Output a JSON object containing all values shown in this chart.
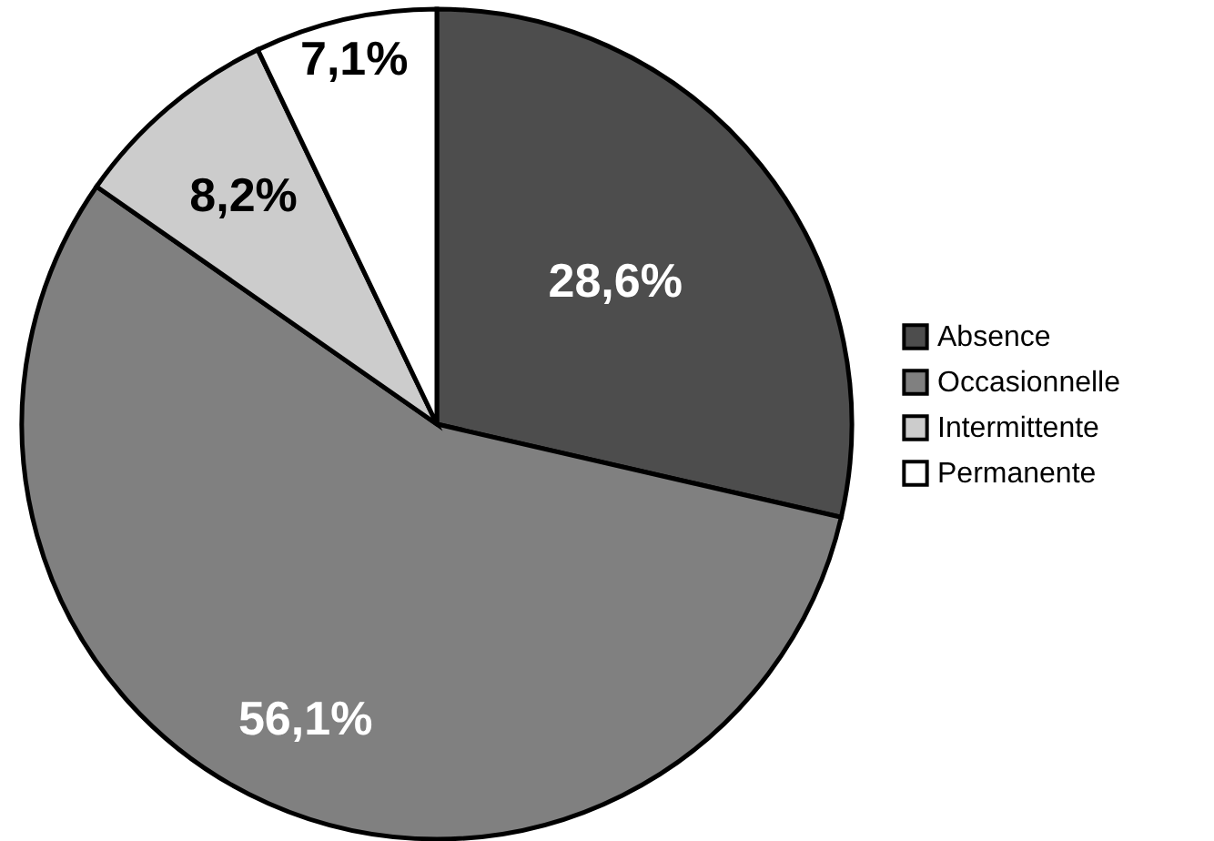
{
  "chart_data": {
    "type": "pie",
    "categories": [
      "Absence",
      "Occasionnelle",
      "Intermittente",
      "Permanente"
    ],
    "values": [
      28.6,
      56.1,
      8.2,
      7.1
    ],
    "colors": [
      "#4d4d4d",
      "#808080",
      "#cccccc",
      "#ffffff"
    ],
    "value_labels": [
      "28,6%",
      "56,1%",
      "8,2%",
      "7,1%"
    ],
    "legend": "right"
  }
}
